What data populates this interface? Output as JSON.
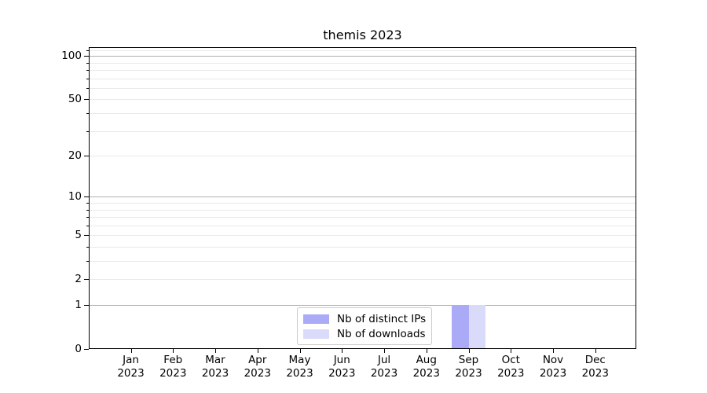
{
  "chart_data": {
    "type": "bar",
    "title": "themis 2023",
    "categories": [
      "Jan",
      "Feb",
      "Mar",
      "Apr",
      "May",
      "Jun",
      "Jul",
      "Aug",
      "Sep",
      "Oct",
      "Nov",
      "Dec"
    ],
    "xtick_year_line": "2023",
    "series": [
      {
        "name": "Nb of distinct IPs",
        "color": "#aaaaf7",
        "values": [
          0,
          0,
          0,
          0,
          0,
          0,
          0,
          0,
          1,
          0,
          0,
          0
        ]
      },
      {
        "name": "Nb of downloads",
        "color": "#dadafa",
        "values": [
          0,
          0,
          0,
          0,
          0,
          0,
          0,
          0,
          1,
          0,
          0,
          0
        ]
      }
    ],
    "yscale": "log1p",
    "ylim": [
      0,
      114
    ],
    "ytick_labels": [
      0,
      1,
      2,
      5,
      10,
      20,
      50,
      100
    ],
    "y_major_grid": [
      1,
      10,
      100
    ],
    "y_minor_grid": [
      2,
      3,
      4,
      5,
      6,
      7,
      8,
      9,
      20,
      30,
      40,
      50,
      60,
      70,
      80,
      90,
      110
    ],
    "grid": true,
    "legend_position": "lower center",
    "colors": {
      "major_grid": "#b0b0b0",
      "minor_grid": "#e9e9e9",
      "spine": "#000000",
      "legend_border": "#cccccc",
      "background": "#ffffff",
      "text": "#000000"
    }
  }
}
